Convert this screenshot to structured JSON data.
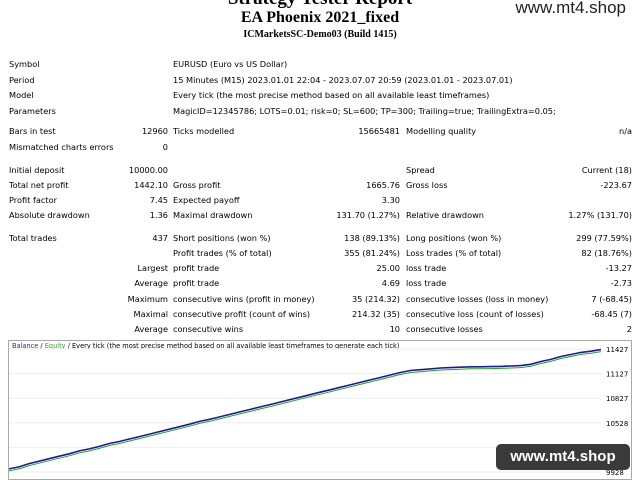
{
  "header": {
    "title": "Strategy Tester Report",
    "ea_name": "EA Phoenix 2021_fixed",
    "server": "ICMarketsSC-Demo03 (Build 1415)"
  },
  "watermark": {
    "top": "www.mt4.shop",
    "bottom": "www.mt4.shop"
  },
  "settings": {
    "symbol_label": "Symbol",
    "symbol": "EURUSD (Euro vs US Dollar)",
    "period_label": "Period",
    "period": "15 Minutes (M15) 2023.01.01 22:04 - 2023.07.07 20:59 (2023.01.01 - 2023.07.01)",
    "model_label": "Model",
    "model": "Every tick (the most precise method based on all available least timeframes)",
    "parameters_label": "Parameters",
    "parameters": "MagicID=12345786; LOTS=0.01; risk=0; SL=600; TP=300; Trailing=true; TrailingExtra=0.05;"
  },
  "stats": {
    "bars_label": "Bars in test",
    "bars": "12960",
    "ticks_label": "Ticks modelled",
    "ticks": "15665481",
    "quality_label": "Modelling quality",
    "quality": "n/a",
    "mismatch_label": "Mismatched charts errors",
    "mismatch": "0",
    "deposit_label": "Initial deposit",
    "deposit": "10000.00",
    "spread_label": "Spread",
    "spread": "Current (18)",
    "net_label": "Total net profit",
    "net": "1442.10",
    "gross_profit_label": "Gross profit",
    "gross_profit": "1665.76",
    "gross_loss_label": "Gross loss",
    "gross_loss": "-223.67",
    "pf_label": "Profit factor",
    "pf": "7.45",
    "payoff_label": "Expected payoff",
    "payoff": "3.30",
    "abs_dd_label": "Absolute drawdown",
    "abs_dd": "1.36",
    "max_dd_label": "Maximal drawdown",
    "max_dd": "131.70 (1.27%)",
    "rel_dd_label": "Relative drawdown",
    "rel_dd": "1.27% (131.70)",
    "trades_label": "Total trades",
    "trades": "437",
    "short_label": "Short positions (won %)",
    "short": "138 (89.13%)",
    "long_label": "Long positions (won %)",
    "long": "299 (77.59%)",
    "pt_label": "Profit trades (% of total)",
    "pt": "355 (81.24%)",
    "lt_label": "Loss trades (% of total)",
    "lt": "82 (18.76%)",
    "largest_label": "Largest",
    "largest_pt_label": "profit trade",
    "largest_pt": "25.00",
    "largest_lt_label": "loss trade",
    "largest_lt": "-13.27",
    "average_label": "Average",
    "avg_pt_label": "profit trade",
    "avg_pt": "4.69",
    "avg_lt_label": "loss trade",
    "avg_lt": "-2.73",
    "maximum_label": "Maximum",
    "max_cw_label": "consecutive wins (profit in money)",
    "max_cw": "35 (214.32)",
    "max_cl_label": "consecutive losses (loss in money)",
    "max_cl": "7 (-68.45)",
    "maximal_label": "Maximal",
    "mx_cp_label": "consecutive profit (count of wins)",
    "mx_cp": "214.32 (35)",
    "mx_cl_label": "consecutive loss (count of losses)",
    "mx_cl": "-68.45 (7)",
    "average2_label": "Average",
    "avg_cw_label": "consecutive wins",
    "avg_cw": "10",
    "avg_cl_label": "consecutive losses",
    "avg_cl": "2"
  },
  "chart_legend": {
    "balance": "Balance",
    "sep": " / ",
    "equity": "Equity",
    "rest": " / Every tick (the most precise method based on all available least timeframes to generate each tick)"
  },
  "colors": {
    "balance": "#1c1c8c",
    "equity": "#2e9b2e",
    "legend_balance": "#1a2f9c",
    "legend_equity": "#3aa03a"
  },
  "chart_data": {
    "type": "line",
    "xlabel": "",
    "ylabel": "",
    "y_ticks": [
      11427,
      11127,
      10827,
      10528,
      10228,
      9928
    ],
    "ylim": [
      9928,
      11427
    ],
    "series": [
      {
        "name": "Balance",
        "points": [
          [
            0,
            9966
          ],
          [
            10,
            9990
          ],
          [
            20,
            10030
          ],
          [
            30,
            10060
          ],
          [
            40,
            10090
          ],
          [
            50,
            10120
          ],
          [
            60,
            10150
          ],
          [
            70,
            10185
          ],
          [
            80,
            10210
          ],
          [
            90,
            10240
          ],
          [
            100,
            10275
          ],
          [
            110,
            10300
          ],
          [
            120,
            10330
          ],
          [
            130,
            10360
          ],
          [
            140,
            10390
          ],
          [
            150,
            10420
          ],
          [
            160,
            10450
          ],
          [
            170,
            10480
          ],
          [
            180,
            10510
          ],
          [
            190,
            10545
          ],
          [
            200,
            10570
          ],
          [
            210,
            10600
          ],
          [
            220,
            10630
          ],
          [
            230,
            10660
          ],
          [
            240,
            10690
          ],
          [
            250,
            10720
          ],
          [
            260,
            10750
          ],
          [
            270,
            10780
          ],
          [
            280,
            10810
          ],
          [
            290,
            10840
          ],
          [
            300,
            10870
          ],
          [
            310,
            10900
          ],
          [
            320,
            10930
          ],
          [
            330,
            10960
          ],
          [
            340,
            10990
          ],
          [
            350,
            11020
          ],
          [
            360,
            11050
          ],
          [
            370,
            11080
          ],
          [
            380,
            11110
          ],
          [
            390,
            11140
          ],
          [
            400,
            11165
          ],
          [
            410,
            11175
          ],
          [
            420,
            11185
          ],
          [
            430,
            11195
          ],
          [
            440,
            11200
          ],
          [
            450,
            11205
          ],
          [
            460,
            11210
          ],
          [
            470,
            11210
          ],
          [
            480,
            11212
          ],
          [
            490,
            11215
          ],
          [
            500,
            11220
          ],
          [
            510,
            11225
          ],
          [
            520,
            11240
          ],
          [
            530,
            11275
          ],
          [
            540,
            11300
          ],
          [
            550,
            11335
          ],
          [
            560,
            11360
          ],
          [
            570,
            11385
          ],
          [
            580,
            11400
          ],
          [
            590,
            11420
          ]
        ]
      },
      {
        "name": "Equity",
        "points": []
      }
    ]
  }
}
